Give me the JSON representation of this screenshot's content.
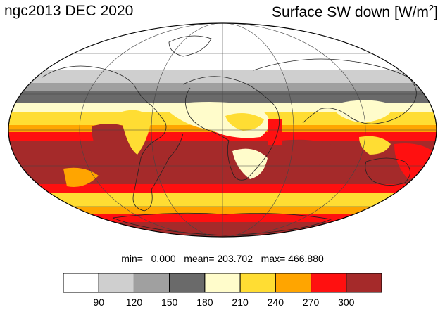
{
  "header": {
    "left_title": "ngc2013 DEC 2020",
    "right_title_prefix": "Surface SW down [W/m",
    "right_title_sup": "2",
    "right_title_suffix": "]"
  },
  "stats": {
    "text": "min=   0.000   mean= 203.702   max= 466.880"
  },
  "colorbar": {
    "colors": [
      "#ffffff",
      "#cfcfcf",
      "#a0a0a0",
      "#6a6a6a",
      "#fffccb",
      "#ffdd33",
      "#ffa500",
      "#ff1010",
      "#a52a2a"
    ],
    "ticks": [
      "90",
      "120",
      "150",
      "180",
      "210",
      "240",
      "270",
      "300"
    ]
  },
  "map_colors": {
    "white": "#ffffff",
    "lightgray": "#cfcfcf",
    "gray": "#a0a0a0",
    "darkgray": "#6a6a6a",
    "paleyellow": "#fffccb",
    "yellow": "#ffdd33",
    "orange": "#ffa500",
    "red": "#ff1010",
    "darkred": "#a52a2a"
  }
}
